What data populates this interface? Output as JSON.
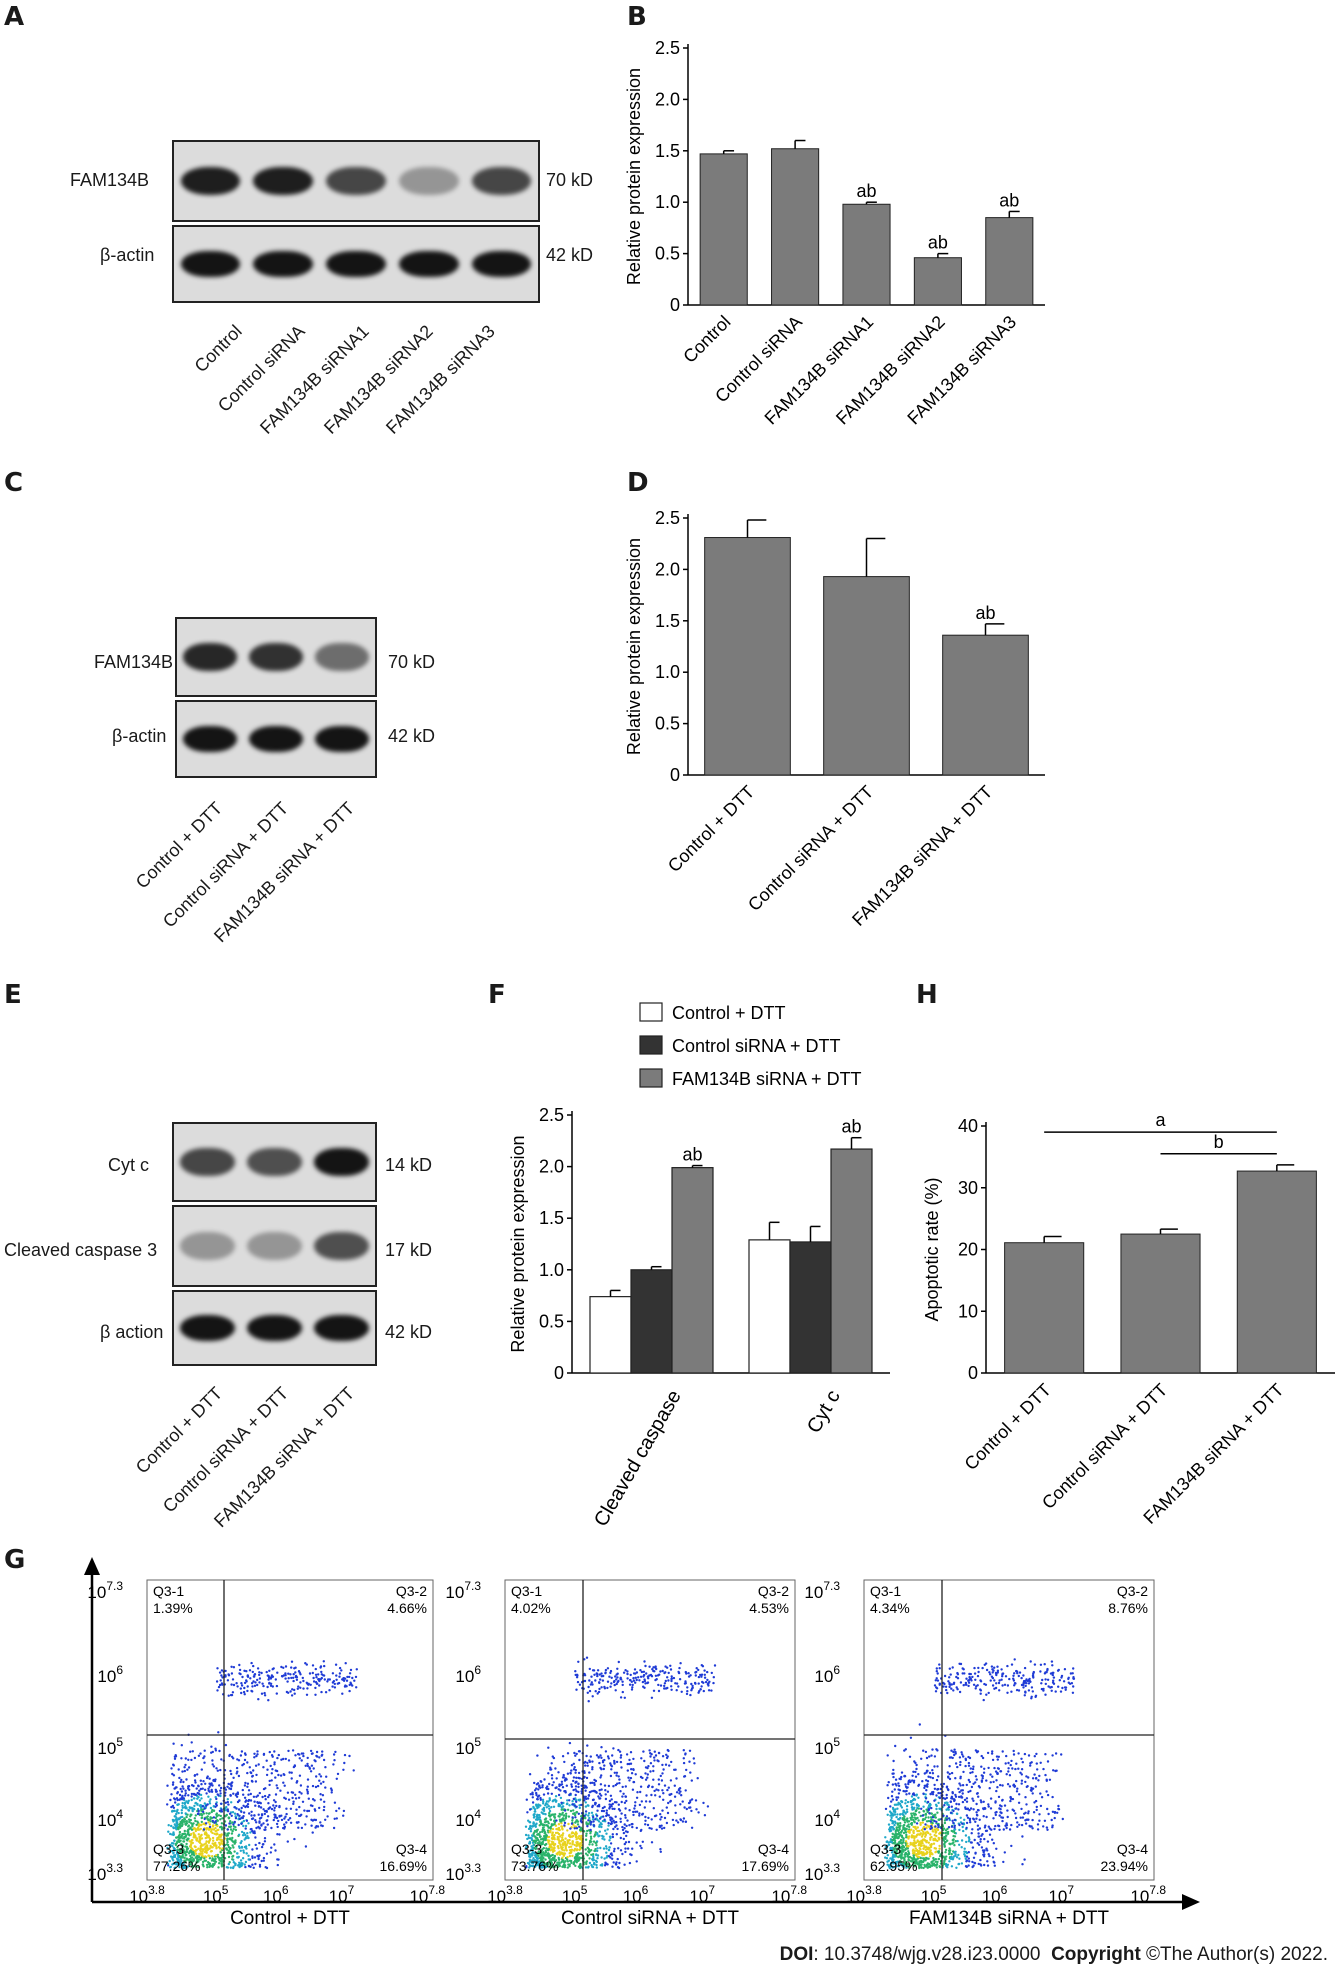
{
  "panels": {
    "A": "A",
    "B": "B",
    "C": "C",
    "D": "D",
    "E": "E",
    "F": "F",
    "G": "G",
    "H": "H"
  },
  "blot_A": {
    "rows": [
      {
        "label": "FAM134B",
        "kd": "70 kD",
        "intensity": [
          0.95,
          0.95,
          0.75,
          0.35,
          0.75
        ]
      },
      {
        "label": "β-actin",
        "kd": "42 kD",
        "intensity": [
          1,
          1,
          1,
          1,
          1
        ]
      }
    ],
    "lanes": [
      "Control",
      "Control siRNA",
      "FAM134B siRNA1",
      "FAM134B siRNA2",
      "FAM134B siRNA3"
    ]
  },
  "blot_C": {
    "rows": [
      {
        "label": "FAM134B",
        "kd": "70 kD",
        "intensity": [
          0.9,
          0.85,
          0.55
        ]
      },
      {
        "label": "β-actin",
        "kd": "42 kD",
        "intensity": [
          1,
          1,
          1
        ]
      }
    ],
    "lanes": [
      "Control + DTT",
      "Control siRNA + DTT",
      "FAM134B siRNA + DTT"
    ]
  },
  "blot_E": {
    "rows": [
      {
        "label": "Cyt c",
        "kd": "14 kD",
        "intensity": [
          0.75,
          0.7,
          1
        ]
      },
      {
        "label": "Cleaved caspase 3",
        "kd": "17 kD",
        "intensity": [
          0.35,
          0.35,
          0.7
        ]
      },
      {
        "label": "β action",
        "kd": "42 kD",
        "intensity": [
          1,
          1,
          1
        ]
      }
    ],
    "lanes": [
      "Control + DTT",
      "Control siRNA + DTT",
      "FAM134B siRNA + DTT"
    ]
  },
  "chart_data": [
    {
      "id": "B",
      "type": "bar",
      "categories": [
        "Control",
        "Control siRNA",
        "FAM134B siRNA1",
        "FAM134B siRNA2",
        "FAM134B siRNA3"
      ],
      "values": [
        1.47,
        1.52,
        0.98,
        0.46,
        0.85
      ],
      "errors": [
        0.03,
        0.08,
        0.02,
        0.04,
        0.06
      ],
      "annotations": [
        "",
        "",
        "ab",
        "ab",
        "ab"
      ],
      "ylabel": "Relative protein expression",
      "ylim": [
        0,
        2.5
      ],
      "yticks": [
        "0",
        "0.5",
        "1.0",
        "1.5",
        "2.0",
        "2.5"
      ],
      "color": "#7b7b7b"
    },
    {
      "id": "D",
      "type": "bar",
      "categories": [
        "Control + DTT",
        "Control siRNA + DTT",
        "FAM134B siRNA + DTT"
      ],
      "values": [
        2.31,
        1.93,
        1.36
      ],
      "errors": [
        0.17,
        0.37,
        0.11
      ],
      "annotations": [
        "",
        "",
        "ab"
      ],
      "ylabel": "Relative protein expression",
      "ylim": [
        0,
        2.5
      ],
      "yticks": [
        "0",
        "0.5",
        "1.0",
        "1.5",
        "2.0",
        "2.5"
      ],
      "color": "#7b7b7b"
    },
    {
      "id": "F",
      "type": "bar",
      "categories": [
        "Cleaved caspase",
        "Cyt c"
      ],
      "series": [
        {
          "name": "Control + DTT",
          "values": [
            0.74,
            1.29
          ],
          "errors": [
            0.06,
            0.17
          ],
          "color": "#ffffff"
        },
        {
          "name": "Control siRNA + DTT",
          "values": [
            1.0,
            1.27
          ],
          "errors": [
            0.03,
            0.15
          ],
          "color": "#333333"
        },
        {
          "name": "FAM134B siRNA + DTT",
          "values": [
            1.99,
            2.17
          ],
          "errors": [
            0.02,
            0.11
          ],
          "color": "#7b7b7b"
        }
      ],
      "annotations": [
        [
          "",
          "",
          "ab"
        ],
        [
          "",
          "",
          "ab"
        ]
      ],
      "ylabel": "Relative protein expression",
      "ylim": [
        0,
        2.5
      ],
      "yticks": [
        "0",
        "0.5",
        "1.0",
        "1.5",
        "2.0",
        "2.5"
      ],
      "legend": "top"
    },
    {
      "id": "H",
      "type": "bar",
      "categories": [
        "Control + DTT",
        "Control siRNA + DTT",
        "FAM134B siRNA + DTT"
      ],
      "values": [
        21.1,
        22.5,
        32.7
      ],
      "errors": [
        1.0,
        0.8,
        1.0
      ],
      "ylabel": "Apoptotic rate (%)",
      "ylim": [
        0,
        40
      ],
      "yticks": [
        "0",
        "10",
        "20",
        "30",
        "40"
      ],
      "significance": [
        {
          "label": "a",
          "from": 0,
          "to": 2
        },
        {
          "label": "b",
          "from": 1,
          "to": 2
        }
      ],
      "color": "#7b7b7b"
    },
    {
      "id": "G",
      "type": "scatter",
      "plots": [
        {
          "xlabel": "Control + DTT",
          "q1": "Q3-1",
          "q1v": "1.39%",
          "q2": "Q3-2",
          "q2v": "4.66%",
          "q3": "Q3-3",
          "q3v": "77.26%",
          "q4": "Q3-4",
          "q4v": "16.69%"
        },
        {
          "xlabel": "Control siRNA + DTT",
          "q1": "Q3-1",
          "q1v": "4.02%",
          "q2": "Q3-2",
          "q2v": "4.53%",
          "q3": "Q3-3",
          "q3v": "73.76%",
          "q4": "Q3-4",
          "q4v": "17.69%"
        },
        {
          "xlabel": "FAM134B siRNA + DTT",
          "q1": "Q3-1",
          "q1v": "4.34%",
          "q2": "Q3-2",
          "q2v": "8.76%",
          "q3": "Q3-3",
          "q3v": "62.95%",
          "q4": "Q3-4",
          "q4v": "23.94%"
        }
      ],
      "xticks": [
        "10^3.8",
        "10^5",
        "10^6",
        "10^7",
        "10^7.8"
      ],
      "yticks": [
        "10^3.3",
        "10^4",
        "10^5",
        "10^6",
        "10^7.3"
      ]
    }
  ],
  "footer": {
    "doi_label": "DOI",
    "doi_value": ": 10.3748/wjg.v28.i23.0000",
    "copyright_label": "Copyright",
    "copyright_value": " ©The Author(s) 2022."
  }
}
